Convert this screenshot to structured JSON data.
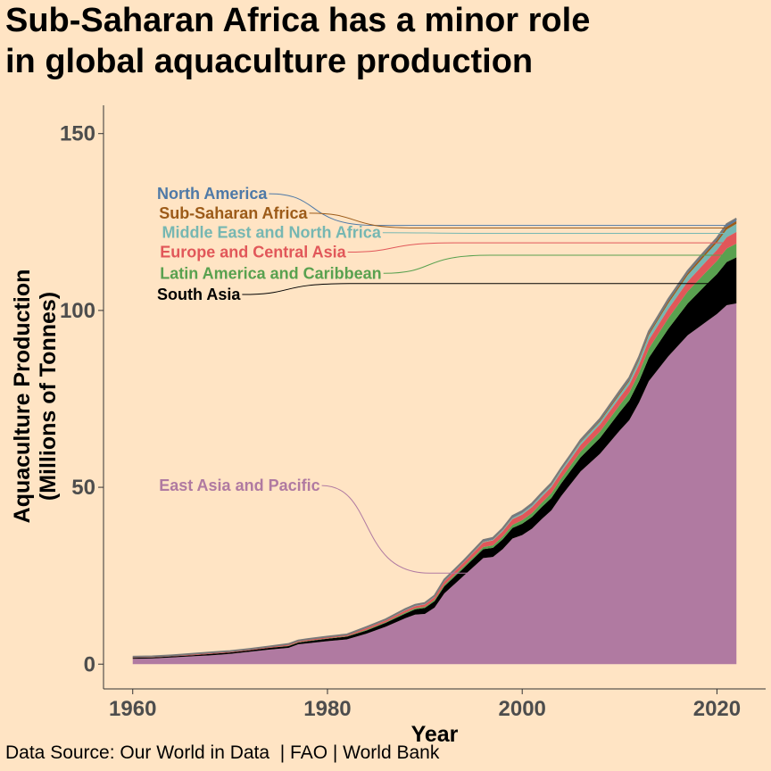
{
  "title": {
    "line1": "Sub-Saharan Africa has a minor role",
    "line2": "in global aquaculture production"
  },
  "source": "Data Source: Our World in Data  | FAO | World Bank",
  "chart_data": {
    "type": "area",
    "stacked": true,
    "xlabel": "Year",
    "ylabel_line1": "Aquaculture Production",
    "ylabel_line2": "(Millions of Tonnes)",
    "xlim": [
      1957,
      2025
    ],
    "ylim": [
      -7,
      158
    ],
    "xticks": [
      1960,
      1980,
      2000,
      2020
    ],
    "yticks": [
      0,
      50,
      100,
      150
    ],
    "x": [
      1960,
      1962,
      1964,
      1966,
      1968,
      1970,
      1972,
      1974,
      1976,
      1977,
      1978,
      1980,
      1982,
      1984,
      1986,
      1988,
      1989,
      1990,
      1991,
      1992,
      1994,
      1996,
      1997,
      1998,
      1999,
      2000,
      2001,
      2002,
      2003,
      2004,
      2005,
      2006,
      2008,
      2010,
      2011,
      2012,
      2013,
      2014,
      2015,
      2016,
      2017,
      2018,
      2019,
      2020,
      2021,
      2022
    ],
    "series": [
      {
        "name": "East Asia and Pacific",
        "color": "#B07AA1",
        "values": [
          1.5,
          1.6,
          1.9,
          2.2,
          2.5,
          2.9,
          3.5,
          4.1,
          4.6,
          5.6,
          5.9,
          6.5,
          7.0,
          8.6,
          10.6,
          13.0,
          14.0,
          14.2,
          16.0,
          20.0,
          25.0,
          30.0,
          30.3,
          32.5,
          35.5,
          36.5,
          38.3,
          41.0,
          43.5,
          47.5,
          51.0,
          54.5,
          59.5,
          66.0,
          69.0,
          74.0,
          80.0,
          83.5,
          87.0,
          90.0,
          93.0,
          95.0,
          97.0,
          99.0,
          101.5,
          102.0
        ]
      },
      {
        "name": "South Asia",
        "color": "#000000",
        "values": [
          0.3,
          0.3,
          0.3,
          0.3,
          0.4,
          0.4,
          0.4,
          0.5,
          0.5,
          0.5,
          0.6,
          0.7,
          0.8,
          0.9,
          1.1,
          1.3,
          1.5,
          1.7,
          1.8,
          2.0,
          2.2,
          2.5,
          2.6,
          2.8,
          3.0,
          3.2,
          3.3,
          3.4,
          3.5,
          3.6,
          3.8,
          4.0,
          4.5,
          5.2,
          5.6,
          6.0,
          6.6,
          7.2,
          7.8,
          8.4,
          9.0,
          9.8,
          10.6,
          11.3,
          12.2,
          13.0
        ]
      },
      {
        "name": "Latin America and Caribbean",
        "color": "#59A14F",
        "values": [
          0.0,
          0.0,
          0.0,
          0.0,
          0.0,
          0.0,
          0.0,
          0.0,
          0.1,
          0.1,
          0.1,
          0.1,
          0.1,
          0.2,
          0.2,
          0.3,
          0.3,
          0.3,
          0.4,
          0.4,
          0.5,
          0.6,
          0.7,
          0.8,
          0.9,
          1.0,
          1.1,
          1.2,
          1.3,
          1.4,
          1.5,
          1.6,
          1.8,
          2.0,
          2.2,
          2.4,
          2.6,
          2.8,
          3.0,
          3.2,
          3.4,
          3.5,
          3.6,
          3.7,
          3.8,
          3.9
        ]
      },
      {
        "name": "Europe and Central Asia",
        "color": "#E15759",
        "values": [
          0.2,
          0.2,
          0.2,
          0.3,
          0.3,
          0.3,
          0.3,
          0.3,
          0.4,
          0.4,
          0.4,
          0.4,
          0.4,
          0.5,
          0.5,
          0.6,
          0.6,
          0.7,
          0.8,
          1.0,
          1.1,
          1.3,
          1.4,
          1.5,
          1.6,
          1.6,
          1.7,
          1.7,
          1.8,
          1.8,
          1.8,
          1.9,
          2.0,
          2.1,
          2.2,
          2.3,
          2.4,
          2.5,
          2.6,
          2.7,
          2.8,
          2.9,
          3.0,
          3.1,
          3.2,
          3.3
        ]
      },
      {
        "name": "Middle East and North Africa",
        "color": "#76B7B2",
        "values": [
          0.0,
          0.0,
          0.0,
          0.0,
          0.0,
          0.0,
          0.0,
          0.0,
          0.0,
          0.0,
          0.0,
          0.0,
          0.0,
          0.1,
          0.1,
          0.1,
          0.1,
          0.1,
          0.1,
          0.1,
          0.1,
          0.2,
          0.2,
          0.3,
          0.3,
          0.4,
          0.4,
          0.5,
          0.5,
          0.5,
          0.6,
          0.7,
          0.8,
          0.9,
          1.0,
          1.2,
          1.4,
          1.5,
          1.6,
          1.7,
          1.8,
          1.9,
          2.0,
          2.1,
          2.2,
          2.3
        ]
      },
      {
        "name": "Sub-Saharan Africa",
        "color": "#9C5B19",
        "values": [
          0.0,
          0.0,
          0.0,
          0.0,
          0.0,
          0.0,
          0.0,
          0.0,
          0.0,
          0.0,
          0.0,
          0.0,
          0.0,
          0.0,
          0.0,
          0.0,
          0.0,
          0.0,
          0.0,
          0.0,
          0.0,
          0.1,
          0.1,
          0.1,
          0.1,
          0.1,
          0.1,
          0.1,
          0.1,
          0.1,
          0.1,
          0.2,
          0.3,
          0.4,
          0.4,
          0.4,
          0.5,
          0.5,
          0.6,
          0.6,
          0.6,
          0.7,
          0.7,
          0.7,
          0.8,
          0.8
        ]
      },
      {
        "name": "North America",
        "color": "#4E79A7",
        "values": [
          0.1,
          0.1,
          0.1,
          0.1,
          0.1,
          0.1,
          0.1,
          0.1,
          0.1,
          0.1,
          0.1,
          0.1,
          0.1,
          0.2,
          0.2,
          0.3,
          0.3,
          0.3,
          0.3,
          0.4,
          0.4,
          0.4,
          0.4,
          0.4,
          0.5,
          0.5,
          0.5,
          0.5,
          0.5,
          0.5,
          0.5,
          0.5,
          0.5,
          0.6,
          0.6,
          0.6,
          0.6,
          0.6,
          0.6,
          0.6,
          0.6,
          0.6,
          0.6,
          0.6,
          0.7,
          0.7
        ]
      }
    ],
    "labels": [
      {
        "series": "North America",
        "color": "#4E79A7",
        "label_x": 1962.5,
        "label_y": 133
      },
      {
        "series": "Sub-Saharan Africa",
        "color": "#9C5B19",
        "label_x": 1962.7,
        "label_y": 127.5
      },
      {
        "series": "Middle East and North Africa",
        "color": "#76B7B2",
        "label_x": 1963.0,
        "label_y": 122
      },
      {
        "series": "Europe and Central Asia",
        "color": "#E15759",
        "label_x": 1962.8,
        "label_y": 116.5
      },
      {
        "series": "Latin America and Caribbean",
        "color": "#59A14F",
        "label_x": 1962.8,
        "label_y": 110.5
      },
      {
        "series": "South Asia",
        "color": "#000000",
        "label_x": 1962.5,
        "label_y": 104.5
      },
      {
        "series": "East Asia and Pacific",
        "color": "#B07AA1",
        "label_x": 1962.7,
        "label_y": 50.5
      }
    ]
  }
}
